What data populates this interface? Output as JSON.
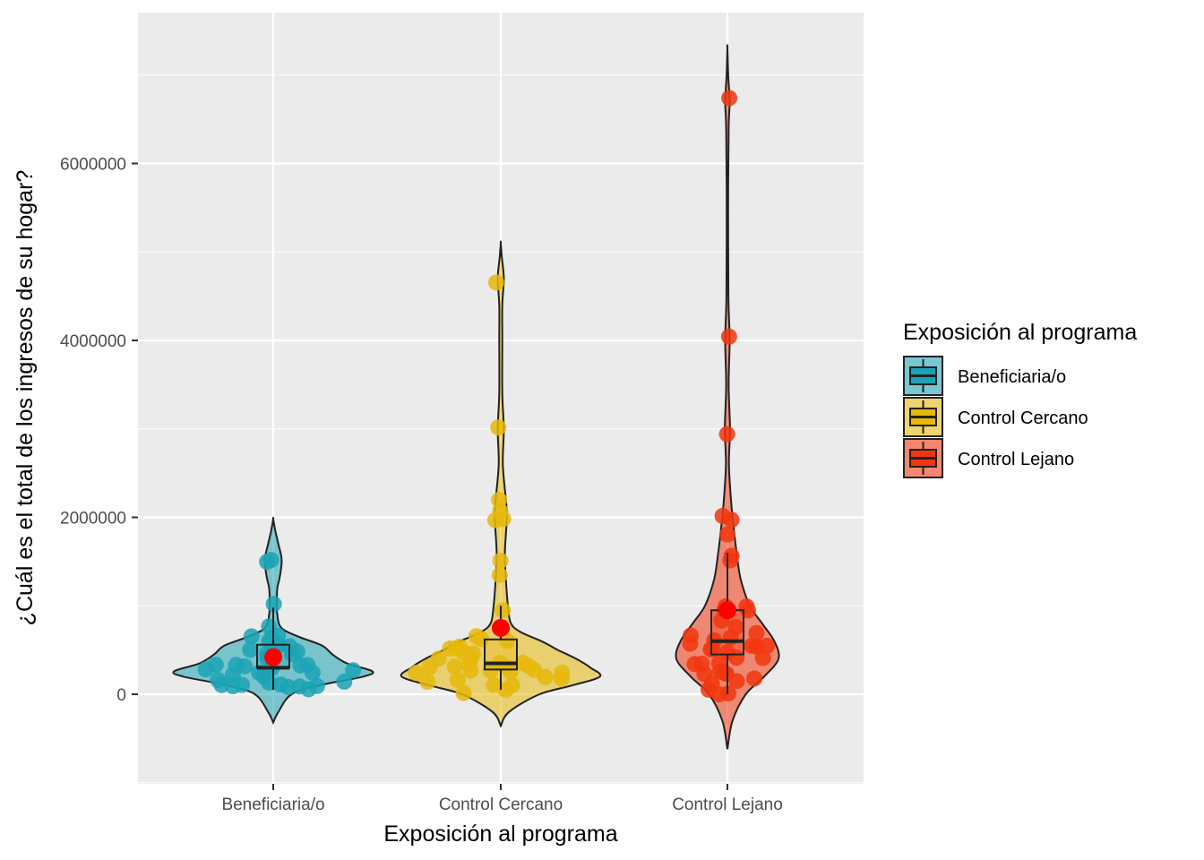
{
  "chart_data": {
    "type": "violin",
    "xlabel": "Exposición al programa",
    "ylabel": "¿Cuál es el total de los ingresos de su hogar?",
    "ylim": [
      -1000000,
      7400000
    ],
    "yticks": [
      0,
      2000000,
      4000000,
      6000000
    ],
    "ytick_labels": [
      "0",
      "2000000",
      "4000000",
      "6000000"
    ],
    "categories": [
      "Beneficiaria/o",
      "Control Cercano",
      "Control Lejano"
    ],
    "grid": true,
    "legend": {
      "title": "Exposición al programa",
      "position": "right",
      "entries": [
        "Beneficiaria/o",
        "Control Cercano",
        "Control Lejano"
      ]
    },
    "series": [
      {
        "name": "Beneficiaria/o",
        "color": "#1BA3B5",
        "mean": 420000,
        "box": {
          "q1": 300000,
          "median": 300000,
          "q3": 560000,
          "whisker_low": 50000,
          "whisker_high": 980000
        },
        "violin": {
          "min": -320000,
          "max": 1980000,
          "widths": [
            [
              -320000,
              0.0
            ],
            [
              -200000,
              0.05
            ],
            [
              0,
              0.18
            ],
            [
              100000,
              0.45
            ],
            [
              200000,
              0.88
            ],
            [
              260000,
              0.97
            ],
            [
              350000,
              0.72
            ],
            [
              450000,
              0.58
            ],
            [
              550000,
              0.48
            ],
            [
              650000,
              0.25
            ],
            [
              750000,
              0.08
            ],
            [
              900000,
              0.04
            ],
            [
              1050000,
              0.035
            ],
            [
              1200000,
              0.04
            ],
            [
              1300000,
              0.06
            ],
            [
              1450000,
              0.08
            ],
            [
              1550000,
              0.08
            ],
            [
              1700000,
              0.05
            ],
            [
              1850000,
              0.02
            ],
            [
              1980000,
              0.0
            ]
          ]
        },
        "points": [
          300000,
          250000,
          200000,
          150000,
          100000,
          350000,
          400000,
          450000,
          500000,
          550000,
          600000,
          200000,
          100000,
          50000,
          250000,
          300000,
          150000,
          100000,
          1000000,
          800000,
          1500000,
          1550000,
          550000,
          600000,
          650000,
          350000,
          300000,
          200000,
          150000,
          100000,
          250000,
          600000,
          500000,
          400000,
          300000,
          200000,
          250000,
          150000,
          100000,
          500000
        ]
      },
      {
        "name": "Control Cercano",
        "color": "#E5B80B",
        "mean": 750000,
        "box": {
          "q1": 280000,
          "median": 350000,
          "q3": 620000,
          "whisker_low": 50000,
          "whisker_high": 1000000
        },
        "violin": {
          "min": -360000,
          "max": 5100000,
          "widths": [
            [
              -360000,
              0.0
            ],
            [
              -200000,
              0.08
            ],
            [
              0,
              0.38
            ],
            [
              100000,
              0.7
            ],
            [
              200000,
              0.97
            ],
            [
              300000,
              0.88
            ],
            [
              400000,
              0.74
            ],
            [
              500000,
              0.56
            ],
            [
              600000,
              0.4
            ],
            [
              700000,
              0.2
            ],
            [
              800000,
              0.1
            ],
            [
              1000000,
              0.07
            ],
            [
              1300000,
              0.05
            ],
            [
              1600000,
              0.04
            ],
            [
              2000000,
              0.06
            ],
            [
              2200000,
              0.05
            ],
            [
              2600000,
              0.02
            ],
            [
              3000000,
              0.03
            ],
            [
              3400000,
              0.015
            ],
            [
              4000000,
              0.015
            ],
            [
              4400000,
              0.015
            ],
            [
              4700000,
              0.03
            ],
            [
              4950000,
              0.01
            ],
            [
              5100000,
              0.0
            ]
          ]
        },
        "points": [
          200000,
          250000,
          300000,
          350000,
          400000,
          500000,
          600000,
          200000,
          150000,
          100000,
          50000,
          150000,
          200000,
          300000,
          400000,
          500000,
          600000,
          250000,
          350000,
          200000,
          300000,
          400000,
          500000,
          600000,
          150000,
          100000,
          900000,
          1300000,
          1500000,
          2000000,
          2100000,
          2250000,
          2000000,
          3000000,
          4700000,
          350000,
          450000,
          550000,
          250000,
          100000
        ]
      },
      {
        "name": "Control Lejano",
        "color": "#F1360F",
        "mean": 950000,
        "box": {
          "q1": 450000,
          "median": 600000,
          "q3": 950000,
          "whisker_low": 0,
          "whisker_high": 1600000
        },
        "violin": {
          "min": -620000,
          "max": 7300000,
          "widths": [
            [
              -620000,
              0.0
            ],
            [
              -300000,
              0.05
            ],
            [
              0,
              0.18
            ],
            [
              200000,
              0.36
            ],
            [
              400000,
              0.5
            ],
            [
              600000,
              0.46
            ],
            [
              800000,
              0.34
            ],
            [
              1000000,
              0.22
            ],
            [
              1300000,
              0.13
            ],
            [
              1600000,
              0.09
            ],
            [
              1900000,
              0.06
            ],
            [
              2200000,
              0.035
            ],
            [
              2600000,
              0.015
            ],
            [
              3000000,
              0.025
            ],
            [
              3500000,
              0.012
            ],
            [
              4000000,
              0.022
            ],
            [
              4500000,
              0.01
            ],
            [
              5500000,
              0.007
            ],
            [
              6400000,
              0.012
            ],
            [
              6700000,
              0.022
            ],
            [
              7000000,
              0.008
            ],
            [
              7300000,
              0.0
            ]
          ]
        },
        "points": [
          0,
          100000,
          150000,
          200000,
          300000,
          400000,
          500000,
          600000,
          700000,
          800000,
          900000,
          1000000,
          1500000,
          1600000,
          1800000,
          2000000,
          2000000,
          3000000,
          4000000,
          6700000,
          350000,
          450000,
          550000,
          650000,
          250000,
          150000,
          50000,
          400000,
          500000,
          600000,
          700000,
          300000,
          200000,
          350000,
          450000,
          600000,
          1000000,
          900000,
          800000,
          200000
        ]
      }
    ]
  }
}
